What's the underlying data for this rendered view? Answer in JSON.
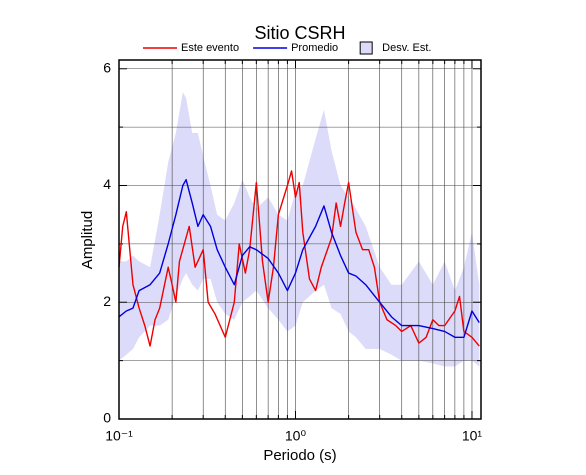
{
  "chart_data": {
    "type": "line",
    "title": "Sitio CSRH",
    "xlabel": "Periodo (s)",
    "ylabel": "Amplitud",
    "xscale": "log",
    "grid": true,
    "legend": "top",
    "xlim": [
      0.1,
      11.25
    ],
    "ylim": [
      0,
      6.15
    ],
    "xticks": [
      {
        "value": 0.1,
        "label": "10⁻¹"
      },
      {
        "value": 1,
        "label": "10⁰"
      },
      {
        "value": 10,
        "label": "10¹"
      }
    ],
    "x_minor_ticks": [
      0.2,
      0.3,
      0.4,
      0.5,
      0.6,
      0.7,
      0.8,
      0.9,
      2,
      3,
      4,
      5,
      6,
      7,
      8,
      9
    ],
    "yticks": [
      0,
      2,
      4,
      6
    ],
    "y_minor_ticks": [
      1,
      3,
      5
    ],
    "band": {
      "name": "Desv. Est.",
      "color": "#dcdcfa",
      "x": [
        0.1,
        0.11,
        0.12,
        0.13,
        0.15,
        0.17,
        0.19,
        0.21,
        0.23,
        0.24,
        0.26,
        0.28,
        0.3,
        0.33,
        0.36,
        0.4,
        0.45,
        0.5,
        0.55,
        0.6,
        0.7,
        0.8,
        0.9,
        1.0,
        1.1,
        1.3,
        1.45,
        1.6,
        1.8,
        2.0,
        2.2,
        2.5,
        3.0,
        3.5,
        4,
        5,
        6,
        7,
        8,
        9,
        10,
        11
      ],
      "upper": [
        2.7,
        2.7,
        2.8,
        2.7,
        2.6,
        3.5,
        4.4,
        4.9,
        5.6,
        5.5,
        4.9,
        4.9,
        4.5,
        4.0,
        3.5,
        3.4,
        3.7,
        4.1,
        3.8,
        3.6,
        3.8,
        3.5,
        3.4,
        3.9,
        4.0,
        4.8,
        5.3,
        4.6,
        4.0,
        3.8,
        3.6,
        3.3,
        2.6,
        2.3,
        2.3,
        2.7,
        2.3,
        2.7,
        2.2,
        2.6,
        3.2,
        2.3
      ],
      "lower": [
        1.0,
        1.1,
        1.2,
        1.4,
        1.6,
        1.6,
        1.7,
        2.1,
        2.4,
        2.5,
        2.3,
        2.2,
        2.4,
        2.4,
        2.0,
        1.8,
        1.7,
        2.0,
        2.1,
        2.2,
        1.9,
        1.7,
        1.5,
        1.6,
        2.0,
        2.2,
        2.3,
        1.9,
        1.8,
        1.5,
        1.4,
        1.2,
        1.2,
        1.1,
        1.0,
        1.0,
        0.95,
        0.9,
        0.9,
        1.0,
        1.0,
        0.9
      ]
    },
    "series": [
      {
        "name": "Este evento",
        "color": "#ee0000",
        "x": [
          0.1,
          0.105,
          0.11,
          0.12,
          0.13,
          0.14,
          0.15,
          0.16,
          0.17,
          0.19,
          0.2,
          0.21,
          0.22,
          0.25,
          0.27,
          0.3,
          0.32,
          0.35,
          0.4,
          0.45,
          0.48,
          0.52,
          0.55,
          0.6,
          0.65,
          0.7,
          0.75,
          0.8,
          0.9,
          0.95,
          1.0,
          1.05,
          1.1,
          1.2,
          1.3,
          1.4,
          1.6,
          1.7,
          1.8,
          1.9,
          2.0,
          2.2,
          2.4,
          2.6,
          2.8,
          3.0,
          3.3,
          3.7,
          4.0,
          4.5,
          5.0,
          5.5,
          6,
          6.5,
          7,
          8,
          8.5,
          9,
          10,
          11
        ],
        "values": [
          2.6,
          3.3,
          3.55,
          2.3,
          1.9,
          1.6,
          1.25,
          1.7,
          1.9,
          2.6,
          2.3,
          2.0,
          2.7,
          3.3,
          2.6,
          2.9,
          2.0,
          1.8,
          1.4,
          2.0,
          3.0,
          2.5,
          2.9,
          4.05,
          2.7,
          2.0,
          2.6,
          3.5,
          4.0,
          4.25,
          3.8,
          4.05,
          3.2,
          2.4,
          2.2,
          2.6,
          3.1,
          3.7,
          3.3,
          3.7,
          4.05,
          3.2,
          2.9,
          2.9,
          2.6,
          2.0,
          1.7,
          1.6,
          1.5,
          1.6,
          1.3,
          1.4,
          1.7,
          1.6,
          1.6,
          1.85,
          2.1,
          1.5,
          1.4,
          1.25
        ]
      },
      {
        "name": "Promedio",
        "color": "#0000dd",
        "x": [
          0.1,
          0.11,
          0.12,
          0.13,
          0.15,
          0.17,
          0.19,
          0.21,
          0.23,
          0.24,
          0.26,
          0.28,
          0.3,
          0.33,
          0.36,
          0.4,
          0.45,
          0.5,
          0.55,
          0.6,
          0.7,
          0.8,
          0.9,
          1.0,
          1.1,
          1.3,
          1.45,
          1.6,
          1.8,
          2.0,
          2.2,
          2.5,
          3.0,
          3.5,
          4,
          5,
          6,
          7,
          8,
          9,
          10,
          11
        ],
        "values": [
          1.75,
          1.85,
          1.9,
          2.2,
          2.3,
          2.5,
          3.0,
          3.5,
          4.0,
          4.1,
          3.7,
          3.3,
          3.5,
          3.3,
          2.9,
          2.6,
          2.3,
          2.8,
          2.95,
          2.9,
          2.75,
          2.5,
          2.2,
          2.5,
          2.9,
          3.3,
          3.65,
          3.2,
          2.8,
          2.5,
          2.45,
          2.3,
          2.0,
          1.75,
          1.6,
          1.6,
          1.55,
          1.5,
          1.4,
          1.4,
          1.85,
          1.65
        ]
      }
    ]
  }
}
